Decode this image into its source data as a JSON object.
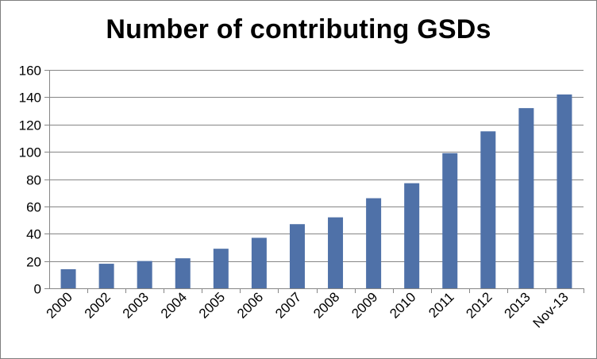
{
  "chart_data": {
    "type": "bar",
    "title": "Number of contributing GSDs",
    "xlabel": "",
    "ylabel": "",
    "categories": [
      "2000",
      "2002",
      "2003",
      "2004",
      "2005",
      "2006",
      "2007",
      "2008",
      "2009",
      "2010",
      "2011",
      "2012",
      "2013",
      "Nov-13"
    ],
    "values": [
      14,
      18,
      20,
      22,
      29,
      37,
      47,
      52,
      66,
      77,
      99,
      115,
      132,
      142
    ],
    "ylim": [
      0,
      160
    ],
    "yticks": [
      0,
      20,
      40,
      60,
      80,
      100,
      120,
      140,
      160
    ],
    "grid": true,
    "legend": "none",
    "colors": {
      "bar": "#4f71a8",
      "grid": "#868686",
      "axis": "#868686"
    }
  }
}
